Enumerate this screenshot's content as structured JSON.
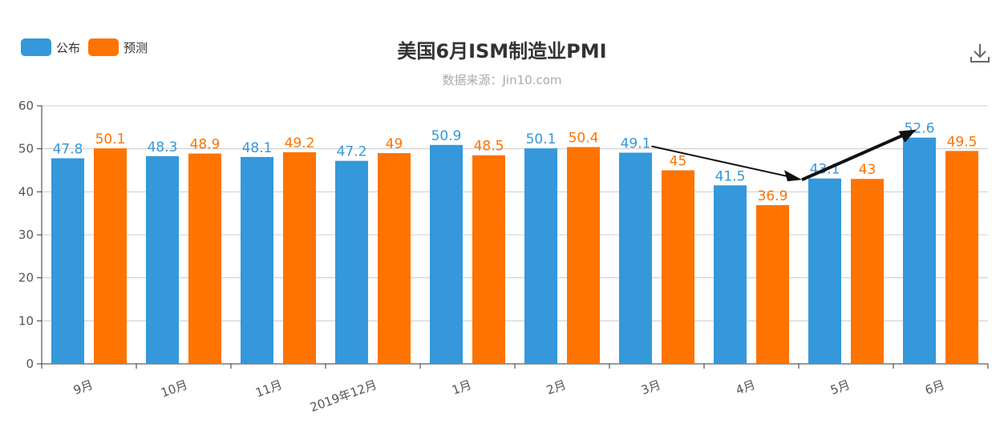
{
  "chart_data": {
    "type": "bar",
    "title": "美国6月ISM制造业PMI",
    "subtitle": "数据来源：Jin10.com",
    "categories": [
      "9月",
      "10月",
      "11月",
      "2019年12月",
      "1月",
      "2月",
      "3月",
      "4月",
      "5月",
      "6月"
    ],
    "series": [
      {
        "name": "公布",
        "color": "#3498db",
        "values": [
          47.8,
          48.3,
          48.1,
          47.2,
          50.9,
          50.1,
          49.1,
          41.5,
          43.1,
          52.6
        ]
      },
      {
        "name": "预测",
        "color": "#ff7300",
        "values": [
          50.1,
          48.9,
          49.2,
          49,
          48.5,
          50.4,
          45,
          36.9,
          43,
          49.5
        ]
      }
    ],
    "ylim": [
      0,
      60
    ],
    "yticks": [
      0,
      10,
      20,
      30,
      40,
      50,
      60
    ],
    "grid": true,
    "legend_position": "top-left",
    "xlabel": "",
    "ylabel": ""
  },
  "toolbar": {
    "download_icon": "download-icon"
  }
}
